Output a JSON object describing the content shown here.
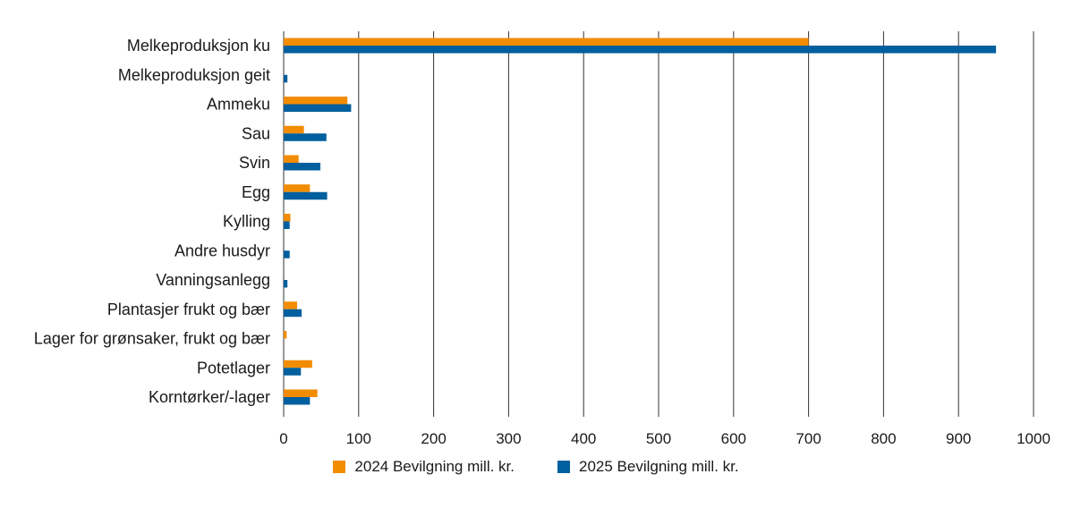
{
  "chart_data": {
    "type": "bar",
    "orientation": "horizontal",
    "title": "",
    "xlabel": "",
    "ylabel": "",
    "xlim": [
      0,
      1000
    ],
    "x_ticks": [
      "0",
      "100",
      "200",
      "300",
      "400",
      "500",
      "600",
      "700",
      "800",
      "900",
      "1000"
    ],
    "grid": "vertical",
    "legend_position": "bottom",
    "categories": [
      "Melkeproduksjon ku",
      "Melkeproduksjon geit",
      "Ammeku",
      "Sau",
      "Svin",
      "Egg",
      "Kylling",
      "Andre husdyr",
      "Vanningsanlegg",
      "Plantasjer frukt og bær",
      "Lager for grønsaker, frukt og bær",
      "Potetlager",
      "Korntørker/-lager"
    ],
    "series": [
      {
        "name": "2024 Bevilgning mill. kr.",
        "color": "#f28c00",
        "values": [
          700,
          0,
          85,
          27,
          20,
          35,
          9,
          0,
          0,
          18,
          4,
          38,
          45
        ]
      },
      {
        "name": "2025 Bevilgning mill. kr.",
        "color": "#005f9e",
        "values": [
          950,
          5,
          90,
          57,
          49,
          58,
          8,
          8,
          5,
          24,
          0,
          23,
          35
        ]
      }
    ]
  }
}
